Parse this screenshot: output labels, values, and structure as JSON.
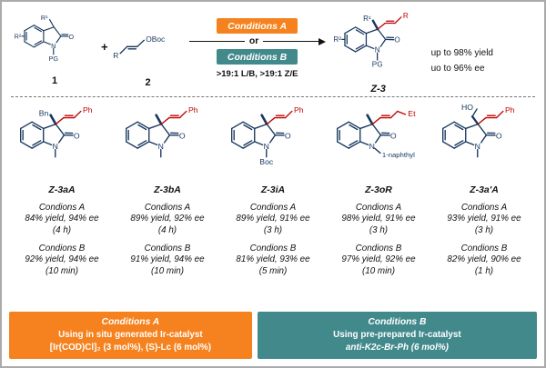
{
  "colors": {
    "orange": "#F5821E",
    "teal": "#42898C",
    "structure": "#17375E",
    "red": "#C00000"
  },
  "atoms": {
    "n": "N",
    "o": "O"
  },
  "top": {
    "reactant1_label": "1",
    "plus_sign": "+",
    "reactant2_label": "2",
    "conditions_a_label": "Conditions A",
    "or_label": "or",
    "conditions_b_label": "Conditions B",
    "selectivity": ">19:1 L/B, >19:1 Z/E",
    "product_label": "Z-3",
    "yield_note1": "up to 98% yield",
    "yield_note2": "uo to 96% ee",
    "structures": {
      "reactant1": {
        "type": "oxindole",
        "c3_type": "label",
        "c3_label": "R¹",
        "c3_thin": true,
        "n_label": "PG",
        "r2_label": "R²"
      },
      "reactant2": {
        "type": "allylboc",
        "r_label": "R",
        "oboc_label": "OBoc"
      },
      "product": {
        "type": "oxindole",
        "c3_type": "label",
        "c3_label": "R¹",
        "n_label": "PG",
        "r2_label": "R²",
        "allyl_label": "R"
      }
    }
  },
  "products": [
    {
      "label": "Z-3aA",
      "structure": {
        "type": "oxindole",
        "c3_type": "label",
        "c3_label": "Bn",
        "n_label": "",
        "allyl_label": "Ph"
      },
      "cond_a_title": "Condions A",
      "cond_a_result": "84% yield, 94% ee",
      "cond_a_time": "(4 h)",
      "cond_b_title": "Condions B",
      "cond_b_result": "92% yield, 94% ee",
      "cond_b_time": "(10 min)"
    },
    {
      "label": "Z-3bA",
      "structure": {
        "type": "oxindole",
        "c3_type": "methyl",
        "n_label": "",
        "allyl_label": "Ph"
      },
      "cond_a_title": "Condions A",
      "cond_a_result": "89% yield, 92% ee",
      "cond_a_time": "(4 h)",
      "cond_b_title": "Condions B",
      "cond_b_result": "91% yield, 94% ee",
      "cond_b_time": "(10 min)"
    },
    {
      "label": "Z-3iA",
      "structure": {
        "type": "oxindole",
        "c3_type": "methyl",
        "n_label": "Boc",
        "allyl_label": "Ph"
      },
      "cond_a_title": "Condions A",
      "cond_a_result": "89% yield, 91% ee",
      "cond_a_time": "(3 h)",
      "cond_b_title": "Condions B",
      "cond_b_result": "81% yield, 93% ee",
      "cond_b_time": "(5 min)"
    },
    {
      "label": "Z-3oR",
      "structure": {
        "type": "oxindole",
        "c3_type": "methyl",
        "n_label": "1-naphthyl",
        "n_right": true,
        "allyl_label": "Et",
        "allyl_long": true
      },
      "cond_a_title": "Condions A",
      "cond_a_result": "98% yield, 91% ee",
      "cond_a_time": "(3 h)",
      "cond_b_title": "Condions B",
      "cond_b_result": "97% yield, 92% ee",
      "cond_b_time": "(10 min)"
    },
    {
      "label": "Z-3a'A",
      "structure": {
        "type": "oxindole",
        "c3_type": "hochain",
        "c3_label": "HO",
        "n_label": "",
        "allyl_label": "Ph"
      },
      "cond_a_title": "Condions A",
      "cond_a_result": "93% yield, 91% ee",
      "cond_a_time": "(3 h)",
      "cond_b_title": "Condions B",
      "cond_b_result": "82% yield, 90% ee",
      "cond_b_time": "(1 h)"
    }
  ],
  "footer": {
    "a": {
      "title": "Conditions A",
      "line1": "Using in situ generated Ir-catalyst",
      "line2": "[Ir(COD)Cl]₂ (3 mol%), (S)-Lc (6 mol%)"
    },
    "b": {
      "title": "Conditions B",
      "line1": "Using pre-prepared Ir-catalyst",
      "line2": "anti-K2c-Br-Ph (6 mol%)"
    }
  }
}
